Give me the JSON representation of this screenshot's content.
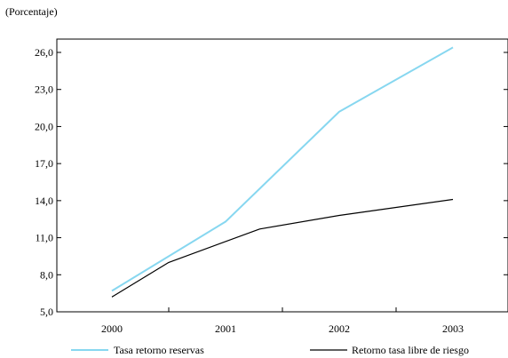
{
  "chart_data": {
    "type": "line",
    "unit_label": "(Porcentaje)",
    "x": [
      "2000",
      "2001",
      "2002",
      "2003"
    ],
    "y_ticks": [
      "5,0",
      "8,0",
      "11,0",
      "14,0",
      "17,0",
      "20,0",
      "23,0",
      "26,0"
    ],
    "ylim": [
      5.0,
      26.0
    ],
    "grid": false,
    "legend_position": "bottom",
    "series": [
      {
        "name": "Tasa retorno reservas",
        "color": "#87d7f0",
        "points": [
          {
            "x": 2000.0,
            "y": 6.7
          },
          {
            "x": 2001.0,
            "y": 12.3
          },
          {
            "x": 2002.0,
            "y": 21.2
          },
          {
            "x": 2003.0,
            "y": 26.4
          }
        ]
      },
      {
        "name": "Retorno tasa libre de riesgo",
        "color": "#000000",
        "points": [
          {
            "x": 2000.0,
            "y": 6.2
          },
          {
            "x": 2000.5,
            "y": 9.0
          },
          {
            "x": 2001.3,
            "y": 11.7
          },
          {
            "x": 2002.0,
            "y": 12.8
          },
          {
            "x": 2003.0,
            "y": 14.1
          }
        ]
      }
    ]
  }
}
